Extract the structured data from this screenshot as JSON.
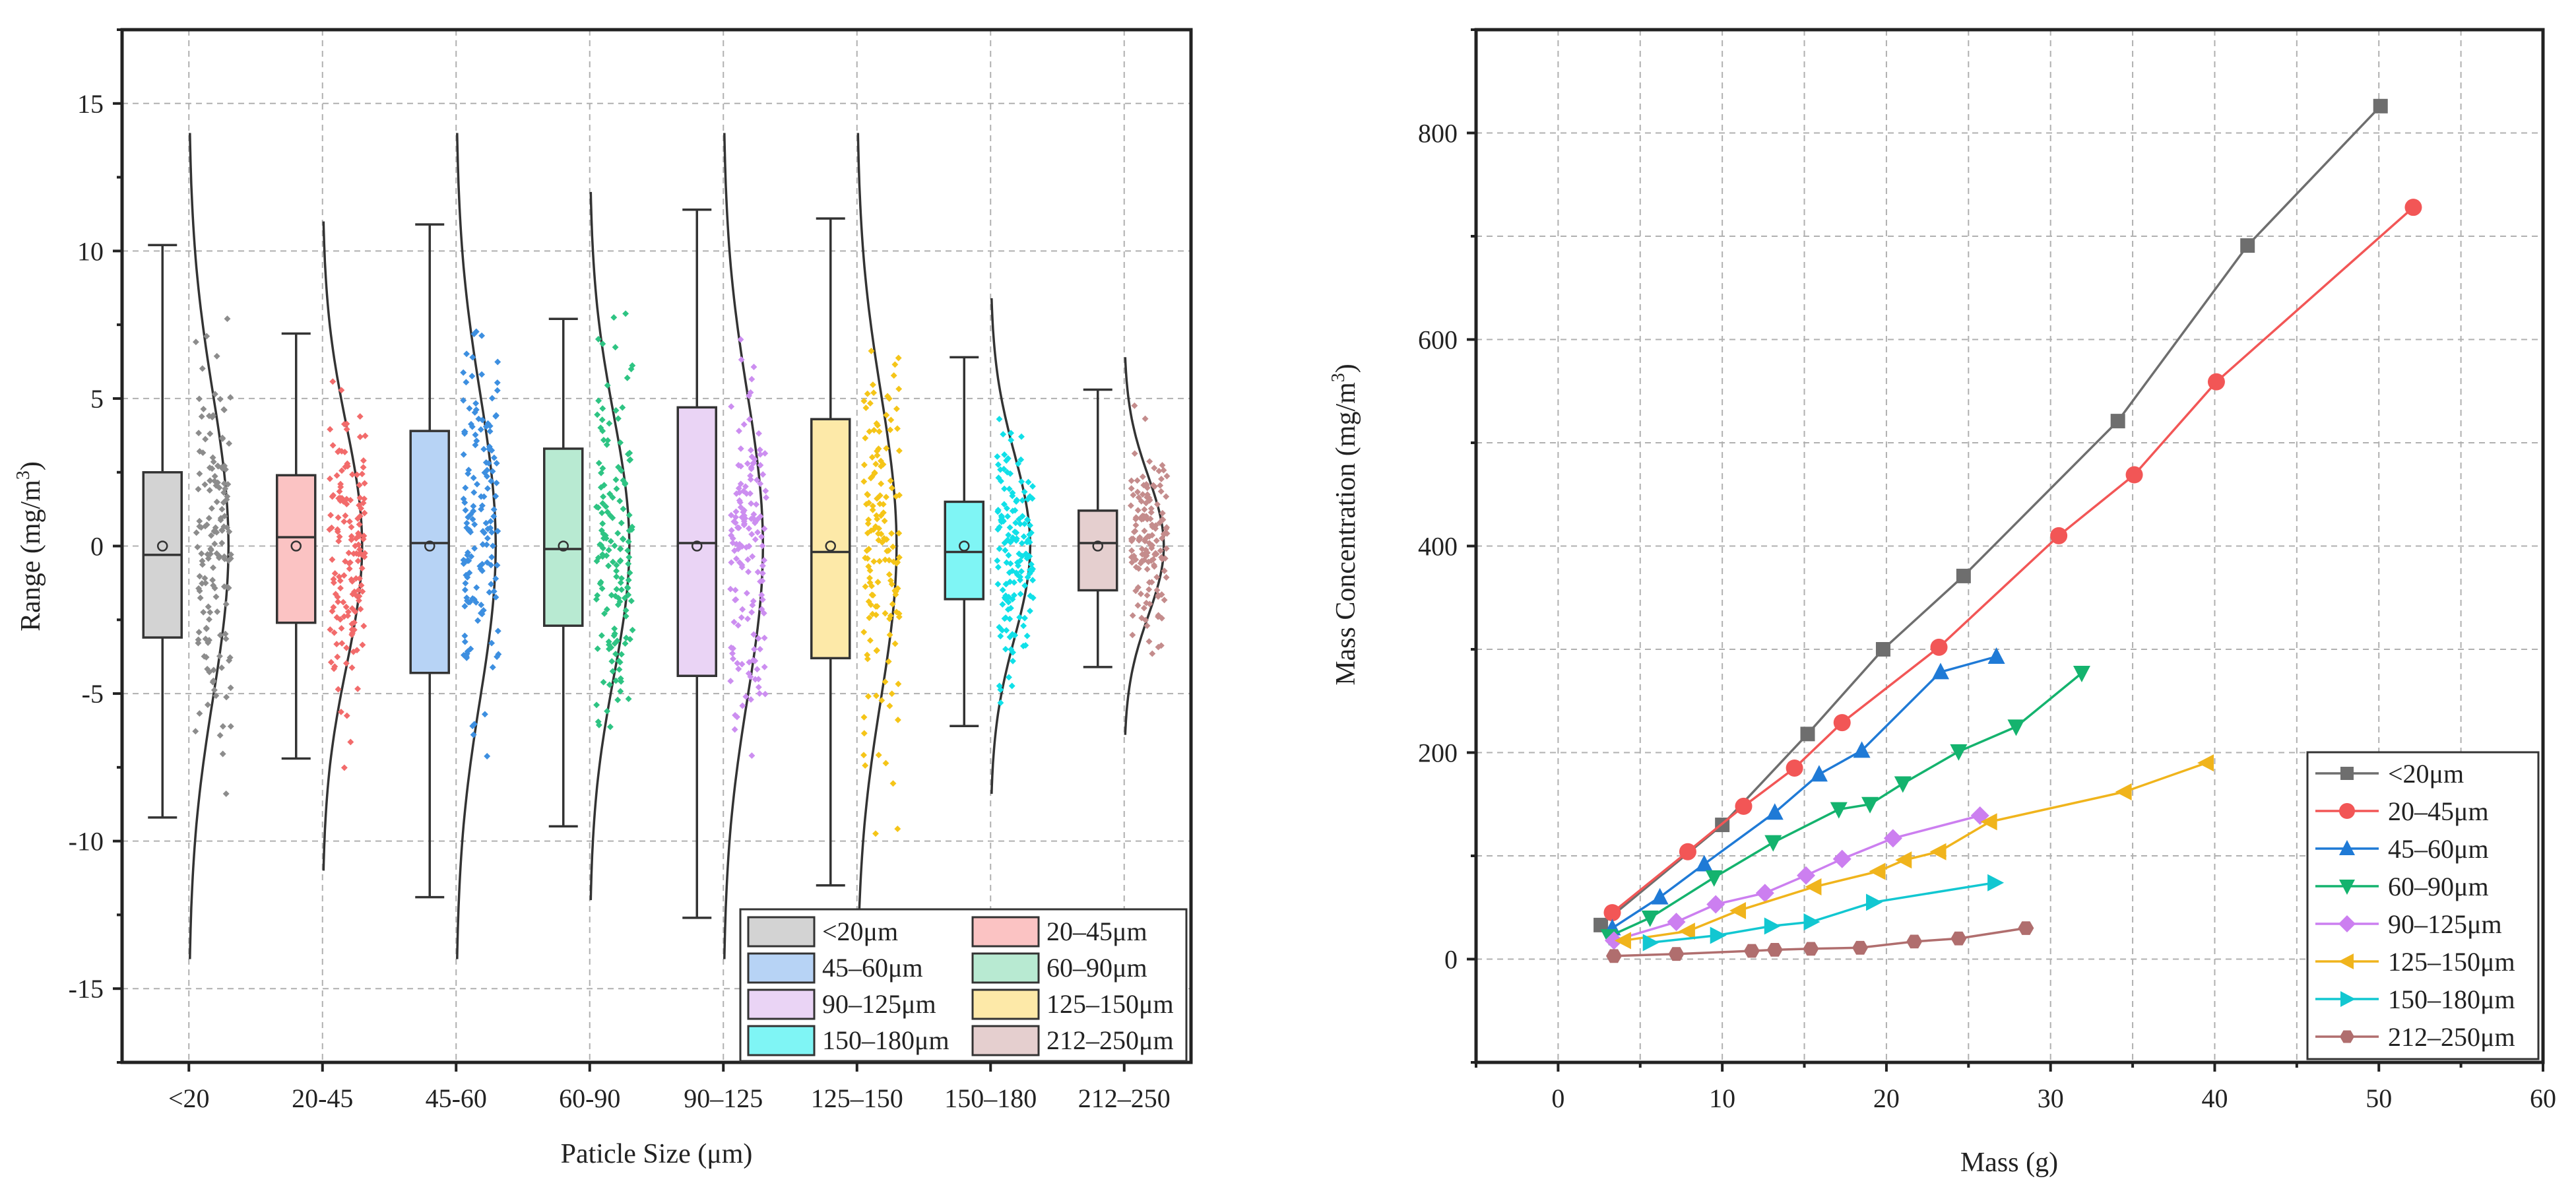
{
  "chart_data": [
    {
      "type": "box",
      "xlabel": "Paticle Size (μm)",
      "ylabel": "Range (mg/m³)",
      "ylim": [
        -17.5,
        17.5
      ],
      "yticks": [
        -15,
        -10,
        -5,
        0,
        5,
        10,
        15
      ],
      "categories": [
        "<20",
        "20-45",
        "45-60",
        "60-90",
        "90–125",
        "125–150",
        "150–180",
        "212–250"
      ],
      "boxes": [
        {
          "name": "<20μm",
          "color": "#d3d3d3",
          "point_color": "#8c8c8c",
          "whisker_low": -9.2,
          "q1": -3.1,
          "median": -0.3,
          "q3": 2.5,
          "whisker_high": 10.2,
          "mean": 0.0,
          "spread": 14
        },
        {
          "name": "20–45μm",
          "color": "#fbc3c3",
          "point_color": "#f26b6b",
          "whisker_low": -7.2,
          "q1": -2.6,
          "median": 0.3,
          "q3": 2.4,
          "whisker_high": 7.2,
          "mean": 0.0,
          "spread": 11
        },
        {
          "name": "45–60μm",
          "color": "#b7d3f5",
          "point_color": "#3d8fe0",
          "whisker_low": -11.9,
          "q1": -4.3,
          "median": 0.1,
          "q3": 3.9,
          "whisker_high": 10.9,
          "mean": 0.0,
          "spread": 14
        },
        {
          "name": "60–90μm",
          "color": "#b8ead2",
          "point_color": "#2ec483",
          "whisker_low": -9.5,
          "q1": -2.7,
          "median": -0.1,
          "q3": 3.3,
          "whisker_high": 7.7,
          "mean": 0.0,
          "spread": 12
        },
        {
          "name": "90–125μm",
          "color": "#ead4f5",
          "point_color": "#cc8ef0",
          "whisker_low": -12.6,
          "q1": -4.4,
          "median": 0.1,
          "q3": 4.7,
          "whisker_high": 11.4,
          "mean": 0.0,
          "spread": 14
        },
        {
          "name": "125–150μm",
          "color": "#fde9a8",
          "point_color": "#f5c518",
          "whisker_low": -11.5,
          "q1": -3.8,
          "median": -0.2,
          "q3": 4.3,
          "whisker_high": 11.1,
          "mean": 0.0,
          "spread": 14
        },
        {
          "name": "150–180μm",
          "color": "#7ff5f5",
          "point_color": "#10e0e8",
          "whisker_low": -6.1,
          "q1": -1.8,
          "median": -0.2,
          "q3": 1.5,
          "whisker_high": 6.4,
          "mean": 0.0,
          "spread": 8.4
        },
        {
          "name": "212–250μm",
          "color": "#e5cfcf",
          "point_color": "#c48c8c",
          "whisker_low": -4.1,
          "q1": -1.5,
          "median": 0.1,
          "q3": 1.2,
          "whisker_high": 5.3,
          "mean": 0.0,
          "spread": 6.4
        }
      ],
      "legend": [
        "<20μm",
        "20–45μm",
        "45–60μm",
        "60–90μm",
        "90–125μm",
        "125–150μm",
        "150–180μm",
        "212–250μm"
      ],
      "legend_position": "bottom-right"
    },
    {
      "type": "line",
      "xlabel": "Mass (g)",
      "ylabel": "Mass Concentration (mg/m³)",
      "xlim": [
        -5,
        60
      ],
      "ylim": [
        -100,
        900
      ],
      "xticks": [
        0,
        10,
        20,
        30,
        40,
        50,
        60
      ],
      "yticks": [
        0,
        200,
        400,
        600,
        800
      ],
      "legend_position": "bottom-right",
      "series": [
        {
          "name": "<20μm",
          "color": "#6e6e6e",
          "marker": "square",
          "x": [
            2.6,
            10.0,
            15.2,
            19.8,
            24.7,
            34.1,
            42.0,
            50.1
          ],
          "y": [
            33,
            130,
            218,
            300,
            371,
            521,
            691,
            826
          ]
        },
        {
          "name": "20–45μm",
          "color": "#f25656",
          "marker": "circle",
          "x": [
            3.3,
            7.9,
            11.3,
            14.4,
            17.3,
            23.2,
            30.5,
            35.1,
            40.1,
            52.1
          ],
          "y": [
            45,
            104,
            148,
            185,
            229,
            302,
            410,
            469,
            559,
            728
          ]
        },
        {
          "name": "45–60μm",
          "color": "#1f7ad6",
          "marker": "triangle-up",
          "x": [
            3.3,
            6.2,
            8.9,
            13.2,
            15.9,
            18.5,
            23.3,
            26.7
          ],
          "y": [
            30,
            60,
            92,
            142,
            179,
            202,
            278,
            293
          ]
        },
        {
          "name": "60–90μm",
          "color": "#14b36e",
          "marker": "triangle-down",
          "x": [
            3.1,
            5.6,
            9.5,
            13.1,
            17.1,
            19.0,
            21.0,
            24.4,
            27.9,
            31.9
          ],
          "y": [
            22,
            40,
            79,
            113,
            145,
            150,
            170,
            201,
            225,
            277
          ]
        },
        {
          "name": "90–125μm",
          "color": "#cc7ff0",
          "marker": "diamond",
          "x": [
            3.4,
            7.2,
            9.6,
            12.6,
            15.1,
            17.3,
            20.4,
            25.7
          ],
          "y": [
            18,
            36,
            53,
            64,
            81,
            97,
            117,
            139
          ]
        },
        {
          "name": "125–150μm",
          "color": "#f0b41c",
          "marker": "triangle-left",
          "x": [
            4.0,
            7.9,
            11.0,
            15.6,
            19.5,
            21.1,
            23.2,
            26.3,
            34.5,
            39.5
          ],
          "y": [
            18,
            27,
            47,
            70,
            85,
            96,
            104,
            133,
            162,
            190
          ]
        },
        {
          "name": "150–180μm",
          "color": "#12c7d1",
          "marker": "triangle-right",
          "x": [
            5.6,
            9.7,
            13.0,
            15.4,
            19.2,
            26.6
          ],
          "y": [
            16,
            23,
            32,
            36,
            55,
            74
          ]
        },
        {
          "name": "212–250μm",
          "color": "#b06e6e",
          "marker": "hexagon",
          "x": [
            3.4,
            7.2,
            11.8,
            13.2,
            15.4,
            18.4,
            21.7,
            24.4,
            28.5
          ],
          "y": [
            3,
            5,
            8,
            9,
            10,
            11,
            17,
            20,
            30
          ]
        }
      ]
    }
  ]
}
